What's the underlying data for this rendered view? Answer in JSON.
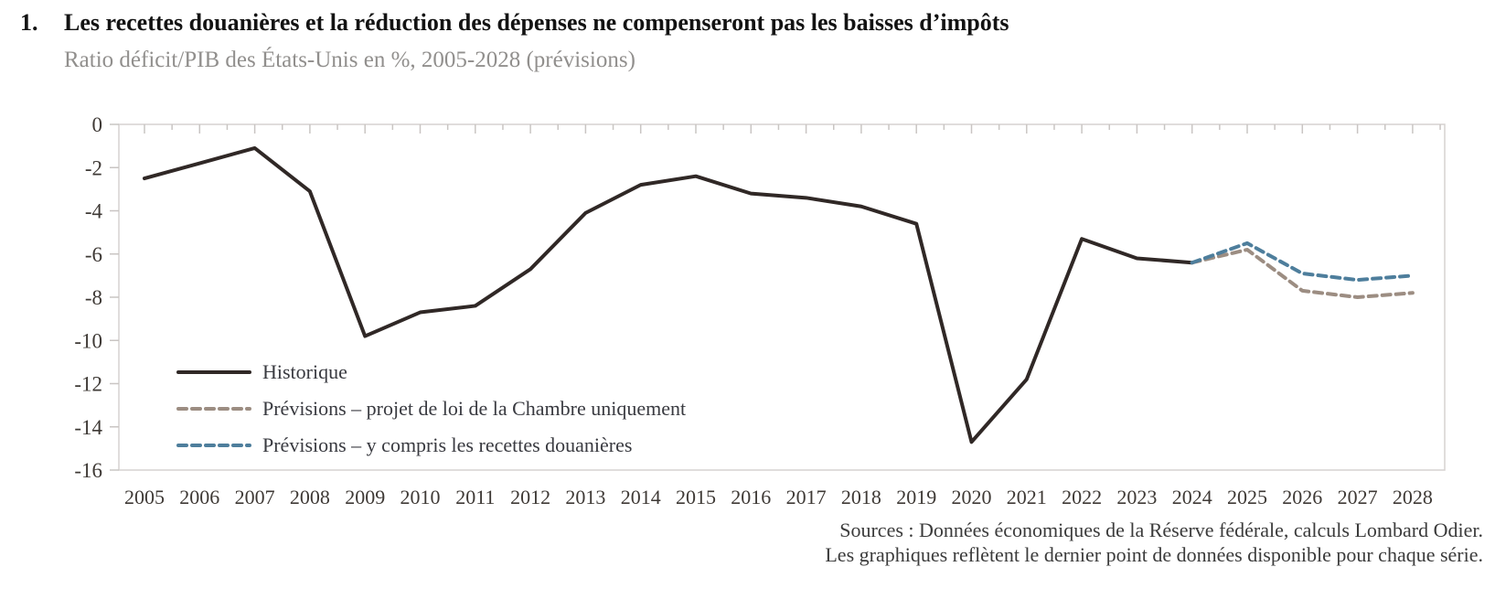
{
  "figure": {
    "number": "1."
  },
  "chart_data": {
    "type": "line",
    "title": "Les recettes douanières et la réduction des dépenses ne compenseront pas les baisses d’impôts",
    "subtitle": "Ratio déficit/PIB des États-Unis en %, 2005-2028 (prévisions)",
    "x": [
      2005,
      2006,
      2007,
      2008,
      2009,
      2010,
      2011,
      2012,
      2013,
      2014,
      2015,
      2016,
      2017,
      2018,
      2019,
      2020,
      2021,
      2022,
      2023,
      2024,
      2025,
      2026,
      2027,
      2028
    ],
    "ylim": [
      -16,
      0
    ],
    "yticks": [
      0,
      -2,
      -4,
      -6,
      -8,
      -10,
      -12,
      -14,
      -16
    ],
    "grid": false,
    "legend_position": "inside-bottom-left",
    "series": [
      {
        "name": "Historique",
        "style": "solid",
        "color": "#302826",
        "x": [
          2005,
          2006,
          2007,
          2008,
          2009,
          2010,
          2011,
          2012,
          2013,
          2014,
          2015,
          2016,
          2017,
          2018,
          2019,
          2020,
          2021,
          2022,
          2023,
          2024
        ],
        "values": [
          -2.5,
          -1.8,
          -1.1,
          -3.1,
          -9.8,
          -8.7,
          -8.4,
          -6.7,
          -4.1,
          -2.8,
          -2.4,
          -3.2,
          -3.4,
          -3.8,
          -4.6,
          -14.7,
          -11.8,
          -5.3,
          -6.2,
          -6.4
        ]
      },
      {
        "name": "Prévisions – projet de loi de la Chambre uniquement",
        "style": "dashed",
        "color": "#9c8d82",
        "x": [
          2024,
          2025,
          2026,
          2027,
          2028
        ],
        "values": [
          -6.4,
          -5.8,
          -7.7,
          -8.0,
          -7.8
        ]
      },
      {
        "name": "Prévisions – y compris les recettes douanières",
        "style": "dashed",
        "color": "#4e7e9c",
        "x": [
          2024,
          2025,
          2026,
          2027,
          2028
        ],
        "values": [
          -6.4,
          -5.5,
          -6.9,
          -7.2,
          -7.0
        ]
      }
    ]
  },
  "sources": {
    "line1": "Sources : Données économiques de la Réserve fédérale, calculs Lombard Odier.",
    "line2": "Les graphiques reflètent le dernier point de données disponible pour chaque série."
  },
  "colors": {
    "plot_border": "#d6d2d0",
    "tick": "#c9c5c3",
    "axis_label": "#3e3935",
    "title": "#131313",
    "subtitle": "#918f8d",
    "legend_text": "#393a40",
    "source_text": "#3b3b3b"
  }
}
